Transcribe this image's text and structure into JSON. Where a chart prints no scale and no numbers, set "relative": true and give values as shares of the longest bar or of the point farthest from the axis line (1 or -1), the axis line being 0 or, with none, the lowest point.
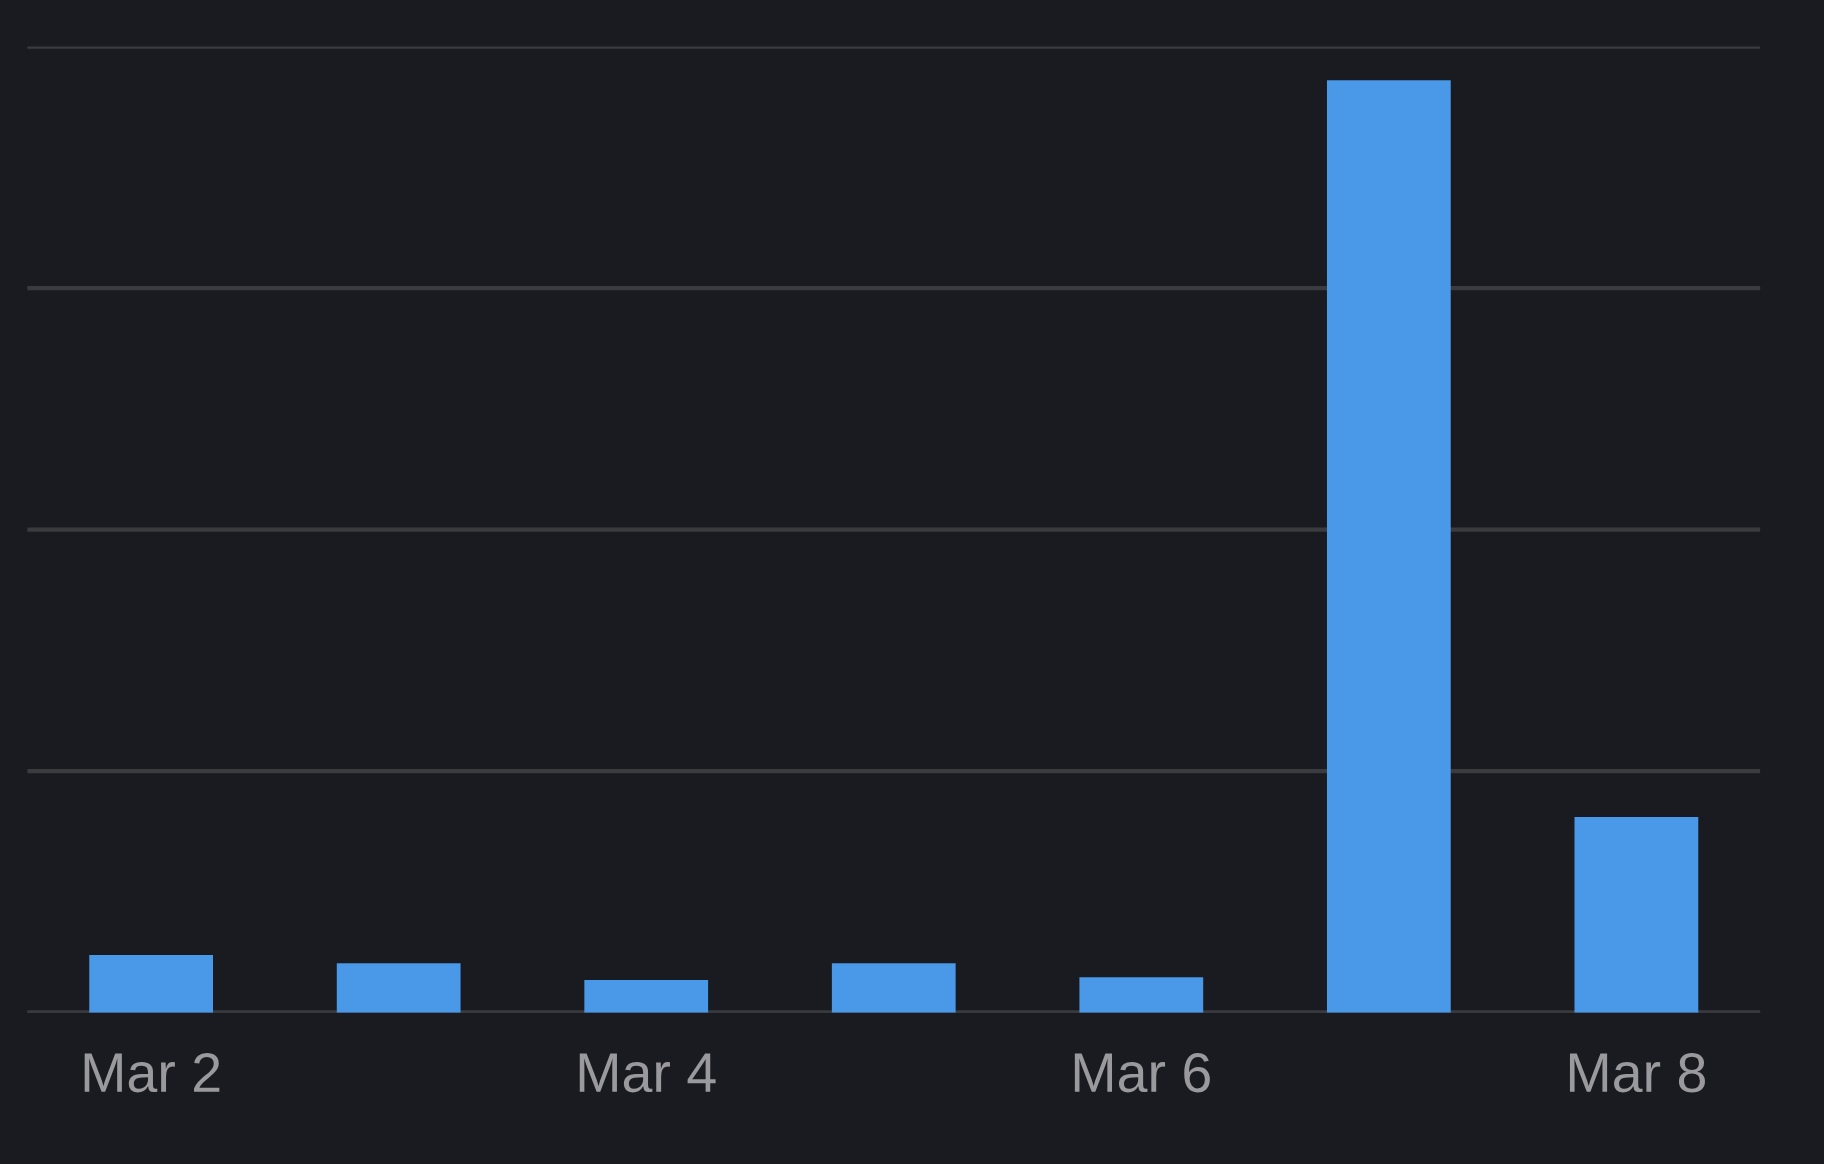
{
  "chart_data": {
    "type": "bar",
    "relative": true,
    "categories": [
      "Mar 2",
      null,
      "Mar 4",
      null,
      "Mar 6",
      null,
      "Mar 8"
    ],
    "values": [
      0.062,
      0.053,
      0.035,
      0.053,
      0.038,
      1,
      0.21
    ],
    "color": "#4a98e8",
    "grid": "y",
    "tick_labels": "x"
  }
}
